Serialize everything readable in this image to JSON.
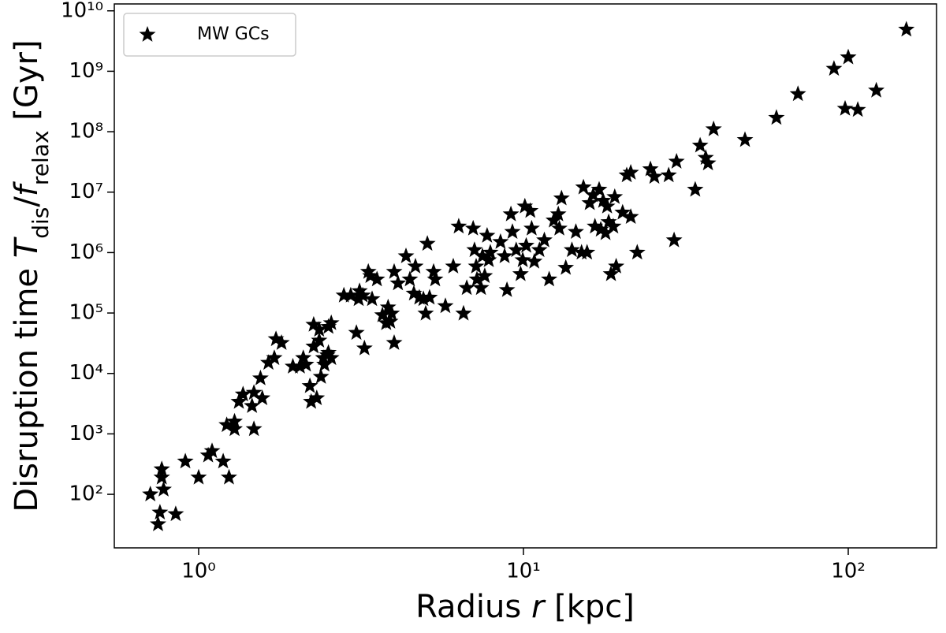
{
  "chart_data": {
    "type": "scatter",
    "xlabel": [
      "Radius ",
      "r",
      " [kpc]"
    ],
    "ylabel": [
      "Disruption time ",
      "T",
      "dis",
      "/",
      "f",
      "relax",
      " [Gyr]"
    ],
    "xscale": "log",
    "yscale": "log",
    "xlim": [
      0.55,
      187
    ],
    "ylim": [
      13,
      13000000000
    ],
    "xticks": [
      {
        "value": 1,
        "label": "10⁰"
      },
      {
        "value": 10,
        "label": "10¹"
      },
      {
        "value": 100,
        "label": "10²"
      }
    ],
    "yticks": [
      {
        "value": 100,
        "label": "10²"
      },
      {
        "value": 1000,
        "label": "10³"
      },
      {
        "value": 10000,
        "label": "10⁴"
      },
      {
        "value": 100000,
        "label": "10⁵"
      },
      {
        "value": 1000000,
        "label": "10⁶"
      },
      {
        "value": 10000000,
        "label": "10⁷"
      },
      {
        "value": 100000000,
        "label": "10⁸"
      },
      {
        "value": 1000000000,
        "label": "10⁹"
      },
      {
        "value": 10000000000,
        "label": "10¹⁰"
      }
    ],
    "legend": "upper left",
    "series": [
      {
        "name": "MW GCs",
        "color": "#000000",
        "marker": "star",
        "x": [
          0.71,
          0.75,
          0.76,
          0.77,
          0.77,
          0.78,
          0.85,
          0.91,
          1.0,
          1.07,
          1.1,
          1.19,
          1.24,
          1.22,
          1.29,
          1.29,
          1.33,
          1.37,
          1.46,
          1.48,
          1.48,
          1.55,
          1.57,
          1.64,
          1.71,
          1.73,
          1.8,
          1.95,
          2.05,
          2.1,
          2.14,
          2.2,
          2.22,
          2.26,
          2.26,
          2.31,
          2.35,
          2.35,
          2.38,
          2.42,
          2.44,
          2.49,
          2.51,
          2.56,
          2.51,
          2.56,
          2.8,
          2.94,
          3.06,
          3.11,
          3.13,
          3.2,
          3.24,
          3.33,
          3.38,
          3.42,
          3.54,
          3.68,
          3.78,
          3.83,
          3.89,
          3.93,
          4.0,
          4.0,
          4.11,
          4.35,
          4.47,
          4.6,
          4.65,
          4.78,
          4.92,
          5.0,
          5.06,
          5.14,
          5.29,
          5.35,
          5.75,
          6.08,
          6.32,
          6.54,
          6.69,
          7.0,
          7.07,
          7.15,
          7.19,
          7.4,
          7.48,
          7.6,
          7.73,
          7.82,
          7.91,
          8.5,
          8.75,
          8.9,
          9.15,
          9.25,
          9.5,
          9.8,
          9.95,
          10.1,
          10.2,
          10.5,
          10.6,
          10.8,
          11.2,
          11.6,
          12.0,
          12.4,
          12.8,
          12.9,
          13.1,
          13.5,
          14.1,
          14.5,
          15.1,
          15.3,
          15.7,
          16.0,
          16.4,
          16.6,
          17.1,
          17.3,
          17.9,
          17.6,
          18.1,
          18.3,
          18.6,
          18.9,
          19.1,
          19.3,
          20.2,
          20.8,
          21.4,
          21.4,
          22.4,
          24.6,
          25.3,
          28.0,
          29.1,
          29.6,
          33.8,
          35.0,
          36.4,
          37.0,
          38.5,
          48.1,
          60.1,
          70.0,
          90.4,
          100,
          97.8,
          107,
          122,
          151
        ],
        "values": [
          100,
          32,
          50,
          260,
          190,
          120,
          47,
          350,
          190,
          440,
          520,
          350,
          190,
          1400,
          1600,
          1200,
          3400,
          4500,
          2900,
          4800,
          1200,
          8300,
          3900,
          15000,
          18000,
          37000,
          32000,
          13000,
          13000,
          18000,
          14000,
          6200,
          3400,
          64000,
          28000,
          3900,
          53000,
          35000,
          8800,
          18000,
          14000,
          20000,
          22000,
          18000,
          59000,
          68000,
          195000,
          195000,
          47000,
          170000,
          230000,
          195000,
          26000,
          480000,
          410000,
          170000,
          360000,
          92000,
          68000,
          124000,
          72000,
          98000,
          480000,
          32000,
          310000,
          870000,
          360000,
          210000,
          590000,
          180000,
          170000,
          98000,
          1400000,
          180000,
          480000,
          360000,
          130000,
          590000,
          2700000,
          98000,
          260000,
          2500000,
          1100000,
          590000,
          360000,
          260000,
          870000,
          410000,
          1900000,
          750000,
          1000000,
          1500000,
          870000,
          240000,
          4300000,
          2200000,
          1100000,
          440000,
          750000,
          5800000,
          1300000,
          4900000,
          2500000,
          710000,
          1100000,
          1600000,
          360000,
          3400000,
          4300000,
          2500000,
          7900000,
          560000,
          1100000,
          2200000,
          1000000,
          12000000,
          1000000,
          6600000,
          8900000,
          2700000,
          11000000,
          2400000,
          2100000,
          7200000,
          5800000,
          3200000,
          440000,
          2700000,
          8300000,
          590000,
          4600000,
          19000000,
          21000000,
          3900000,
          1000000,
          24000000,
          18000000,
          19000000,
          1600000,
          32000000,
          11000000,
          59000000,
          37000000,
          30000000,
          110000000,
          73000000,
          170000000,
          420000000,
          1100000000,
          1700000000,
          240000000,
          230000000,
          480000000,
          4900000000
        ]
      }
    ]
  }
}
